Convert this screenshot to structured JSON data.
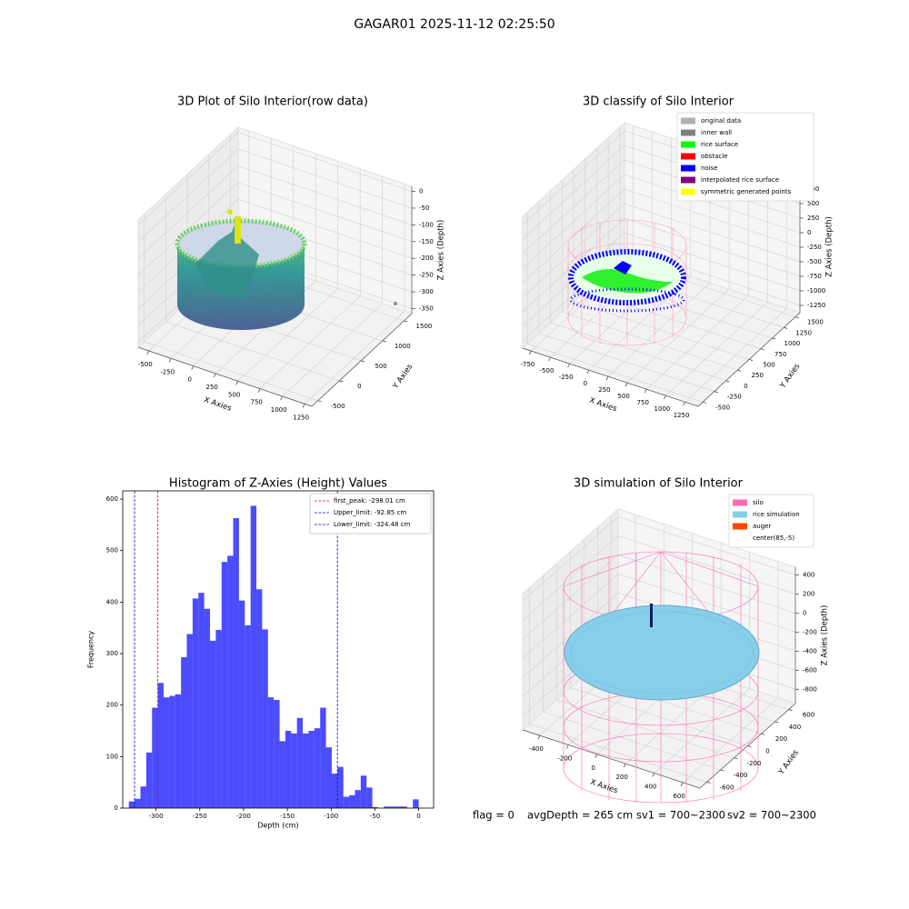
{
  "title": "GAGAR01 2025-11-12 02:25:50",
  "chart_data": [
    {
      "type": "scatter3d",
      "title": "3D Plot of Silo Interior(row data)",
      "xlabel": "X Axies",
      "ylabel": "Y Axies",
      "zlabel": "Z Axies (Depth)",
      "xlim": [
        -620,
        1330
      ],
      "ylim": [
        -640,
        1680
      ],
      "zlim": [
        -365,
        15
      ],
      "xticks": [
        -500,
        -250,
        0,
        250,
        500,
        750,
        1000,
        1250
      ],
      "yticks": [
        -500,
        0,
        500,
        1000,
        1500
      ],
      "zticks": [
        0,
        -50,
        -100,
        -150,
        -200,
        -250,
        -300,
        -350
      ],
      "grid": true
    },
    {
      "type": "scatter3d",
      "title": "3D classify of Silo Interior",
      "xlabel": "X Axies",
      "ylabel": "Y Axies",
      "zlabel": "Z Axies (Depth)",
      "xlim": [
        -860,
        1420
      ],
      "ylim": [
        -600,
        1600
      ],
      "zlim": [
        -1375,
        890
      ],
      "xticks": [
        -750,
        -500,
        -250,
        0,
        250,
        500,
        750,
        1000,
        1250
      ],
      "yticks": [
        -500,
        -250,
        0,
        250,
        500,
        750,
        1000,
        1250,
        1500
      ],
      "zticks": [
        750,
        500,
        250,
        0,
        -250,
        -500,
        -750,
        -1000,
        -1250
      ],
      "grid": true,
      "legend": "upper right",
      "series": [
        {
          "name": "original data",
          "color": "#b0b0b0"
        },
        {
          "name": "inner wall",
          "color": "#808080"
        },
        {
          "name": "rice surface",
          "color": "#00ff00"
        },
        {
          "name": "obstacle",
          "color": "#ff0000"
        },
        {
          "name": "noise",
          "color": "#0000ff"
        },
        {
          "name": "interpolated rice surface",
          "color": "#800080"
        },
        {
          "name": "symmetric generated points",
          "color": "#ffff00"
        }
      ]
    },
    {
      "type": "histogram",
      "title": "Histogram of Z-Axies (Height) Values",
      "xlabel": "Depth (cm)",
      "ylabel": "Frequency",
      "color": "blue",
      "alpha": 0.7,
      "bins": [
        -331,
        -324.38,
        -317.76,
        -311.14,
        -304.52,
        -297.9,
        -291.28,
        -284.66,
        -278.04,
        -271.42,
        -264.8,
        -258.18,
        -251.56,
        -244.94,
        -238.32,
        -231.7,
        -225.08,
        -218.46,
        -211.84,
        -205.22,
        -198.6,
        -191.98,
        -185.36,
        -178.74,
        -172.12,
        -165.5,
        -158.88,
        -152.26,
        -145.64,
        -139.02,
        -132.4,
        -125.78,
        -119.16,
        -112.54,
        -105.92,
        -99.3,
        -92.68,
        -86.06,
        -79.44,
        -72.82,
        -66.2,
        -59.58,
        -52.96,
        -46.34,
        -39.72,
        -33.1,
        -26.48,
        -19.86,
        -13.24,
        -6.62,
        0
      ],
      "counts": [
        13,
        18,
        42,
        108,
        195,
        243,
        215,
        218,
        221,
        293,
        338,
        407,
        418,
        387,
        325,
        346,
        478,
        490,
        563,
        403,
        355,
        587,
        425,
        347,
        215,
        210,
        130,
        150,
        145,
        175,
        145,
        150,
        155,
        195,
        118,
        67,
        80,
        22,
        25,
        35,
        63,
        40,
        2,
        0,
        3,
        3,
        3,
        3,
        0,
        17
      ],
      "xlim": [
        -338,
        17
      ],
      "ylim": [
        0,
        616
      ],
      "xticks": [
        -300,
        -250,
        -200,
        -150,
        -100,
        -50,
        0
      ],
      "yticks": [
        0,
        100,
        200,
        300,
        400,
        500,
        600
      ],
      "legend": "upper right",
      "lines": [
        {
          "name": "first_peak: -298.01 cm",
          "value": -298.01,
          "color": "red"
        },
        {
          "name": "Upper_limit: -92.85 cm",
          "value": -92.85,
          "color": "blue"
        },
        {
          "name": "Lower_limit: -324.48 cm",
          "value": -324.48,
          "color": "blue"
        }
      ]
    },
    {
      "type": "scatter3d",
      "title": "3D simulation of Silo Interior",
      "xlabel": "X Axies",
      "ylabel": "Y Axies",
      "zlabel": "Z Axies (Depth)",
      "xlim": [
        -520,
        720
      ],
      "ylim": [
        -700,
        700
      ],
      "zlim": [
        -950,
        480
      ],
      "xticks": [
        -400,
        -200,
        0,
        200,
        400,
        600
      ],
      "yticks": [
        -600,
        -400,
        -200,
        0,
        200,
        400,
        600
      ],
      "zticks": [
        400,
        200,
        0,
        -200,
        -400,
        -600,
        -800
      ],
      "grid": true,
      "legend": "upper right",
      "series": [
        {
          "name": "silo",
          "color": "#ff69b4"
        },
        {
          "name": "rice simulation",
          "color": "#87ceeb"
        },
        {
          "name": "auger",
          "color": "#ff4500"
        },
        {
          "name": "center(85,-5)",
          "color": "#ffffff"
        }
      ]
    }
  ],
  "footer": [
    "flag = 0",
    "avgDepth = 265 cm",
    "sv1 = 700~2300",
    "sv2 = 700~2300"
  ]
}
